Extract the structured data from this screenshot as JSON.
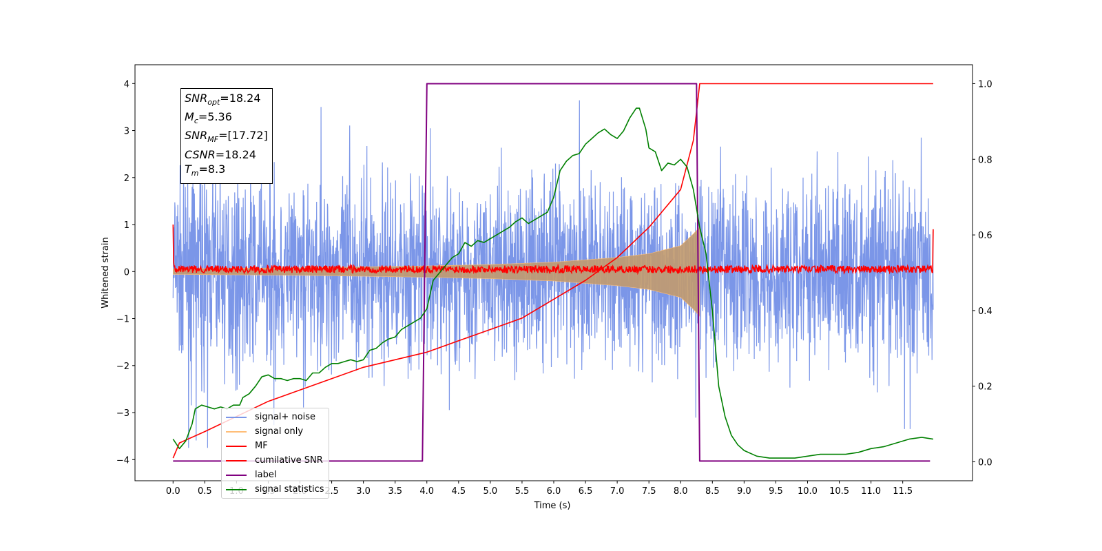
{
  "chart_data": {
    "type": "line",
    "xlabel": "Time (s)",
    "ylabel": "Whitened strain",
    "xlim": [
      -0.6,
      12.6
    ],
    "ylim_left": [
      -4.45,
      4.4
    ],
    "ylim_right": [
      -0.05,
      1.05
    ],
    "x_ticks": [
      "0.0",
      "0.5",
      "1.0",
      "1.5",
      "2.0",
      "2.5",
      "3.0",
      "3.5",
      "4.0",
      "4.5",
      "5.0",
      "5.5",
      "6.0",
      "6.5",
      "7.0",
      "7.5",
      "8.0",
      "8.5",
      "9.0",
      "9.5",
      "10.0",
      "10.5",
      "11.0",
      "11.5"
    ],
    "y_ticks_left": [
      "−4",
      "−3",
      "−2",
      "−1",
      "0",
      "1",
      "2",
      "3",
      "4"
    ],
    "y_ticks_right": [
      "0.0",
      "0.2",
      "0.4",
      "0.6",
      "0.8",
      "1.0"
    ],
    "annotation": {
      "snr_opt_sub": "opt",
      "snr_opt_value": "=18.24",
      "mc_sub": "c",
      "mc_value": "=5.36",
      "snr_mf_sub": "MF",
      "snr_mf_value": "=[17.72]",
      "csnr_value": "=18.24",
      "tm_sub": "m",
      "tm_value": "=8.3"
    },
    "legend": {
      "placement": "lower-left",
      "entries": [
        {
          "label": "signal+ noise",
          "color": "#7b96e8"
        },
        {
          "label": "signal only",
          "color": "#ffbe78"
        },
        {
          "label": "MF",
          "color": "#ff0000"
        },
        {
          "label": "cumilative SNR",
          "color": "#ff0000"
        },
        {
          "label": "label",
          "color": "#800080"
        },
        {
          "label": "signal statistics",
          "color": "#008000"
        }
      ]
    },
    "series": [
      {
        "name": "signal+ noise",
        "axis": "left",
        "color": "#7b96e8",
        "noise_amplitude": 1.3,
        "x_range": [
          0.0,
          11.98
        ]
      },
      {
        "name": "signal only",
        "axis": "left",
        "color": "#ffbe78",
        "envelope": [
          [
            0.0,
            0.06
          ],
          [
            2.0,
            0.08
          ],
          [
            4.0,
            0.12
          ],
          [
            5.0,
            0.15
          ],
          [
            6.0,
            0.2
          ],
          [
            7.0,
            0.3
          ],
          [
            7.5,
            0.38
          ],
          [
            8.0,
            0.55
          ],
          [
            8.2,
            0.8
          ],
          [
            8.3,
            0.95
          ]
        ]
      },
      {
        "name": "MF",
        "axis": "left",
        "color": "#ff0000",
        "baseline": 0.05,
        "x_range": [
          0.0,
          11.98
        ]
      },
      {
        "name": "cumilative SNR",
        "axis": "right",
        "color": "#ff0000",
        "points": [
          [
            0.0,
            0.01
          ],
          [
            0.1,
            0.05
          ],
          [
            0.5,
            0.08
          ],
          [
            1.0,
            0.12
          ],
          [
            1.5,
            0.16
          ],
          [
            2.0,
            0.19
          ],
          [
            2.5,
            0.22
          ],
          [
            3.0,
            0.25
          ],
          [
            3.5,
            0.27
          ],
          [
            4.0,
            0.29
          ],
          [
            4.5,
            0.32
          ],
          [
            5.0,
            0.35
          ],
          [
            5.5,
            0.38
          ],
          [
            6.0,
            0.43
          ],
          [
            6.5,
            0.48
          ],
          [
            7.0,
            0.54
          ],
          [
            7.5,
            0.62
          ],
          [
            8.0,
            0.72
          ],
          [
            8.2,
            0.85
          ],
          [
            8.3,
            1.0
          ],
          [
            11.98,
            1.0
          ]
        ]
      },
      {
        "name": "label",
        "axis": "right",
        "color": "#800080",
        "points": [
          [
            0.0,
            0.002
          ],
          [
            3.93,
            0.002
          ],
          [
            4.0,
            1.0
          ],
          [
            8.25,
            1.0
          ],
          [
            8.3,
            0.002
          ],
          [
            11.93,
            0.002
          ]
        ]
      },
      {
        "name": "signal statistics",
        "axis": "right",
        "color": "#008000",
        "points": [
          [
            0.0,
            0.06
          ],
          [
            0.1,
            0.035
          ],
          [
            0.2,
            0.055
          ],
          [
            0.3,
            0.1
          ],
          [
            0.35,
            0.14
          ],
          [
            0.45,
            0.15
          ],
          [
            0.55,
            0.145
          ],
          [
            0.65,
            0.14
          ],
          [
            0.75,
            0.145
          ],
          [
            0.85,
            0.14
          ],
          [
            0.95,
            0.15
          ],
          [
            1.05,
            0.15
          ],
          [
            1.1,
            0.17
          ],
          [
            1.2,
            0.18
          ],
          [
            1.3,
            0.2
          ],
          [
            1.4,
            0.225
          ],
          [
            1.5,
            0.23
          ],
          [
            1.6,
            0.22
          ],
          [
            1.7,
            0.22
          ],
          [
            1.8,
            0.215
          ],
          [
            1.9,
            0.22
          ],
          [
            2.0,
            0.22
          ],
          [
            2.1,
            0.215
          ],
          [
            2.2,
            0.235
          ],
          [
            2.3,
            0.235
          ],
          [
            2.4,
            0.25
          ],
          [
            2.5,
            0.26
          ],
          [
            2.6,
            0.26
          ],
          [
            2.7,
            0.265
          ],
          [
            2.8,
            0.27
          ],
          [
            2.9,
            0.265
          ],
          [
            3.0,
            0.27
          ],
          [
            3.1,
            0.295
          ],
          [
            3.2,
            0.3
          ],
          [
            3.3,
            0.315
          ],
          [
            3.4,
            0.325
          ],
          [
            3.5,
            0.33
          ],
          [
            3.6,
            0.35
          ],
          [
            3.7,
            0.36
          ],
          [
            3.8,
            0.37
          ],
          [
            3.9,
            0.38
          ],
          [
            4.0,
            0.405
          ],
          [
            4.1,
            0.48
          ],
          [
            4.2,
            0.5
          ],
          [
            4.3,
            0.52
          ],
          [
            4.4,
            0.54
          ],
          [
            4.5,
            0.55
          ],
          [
            4.6,
            0.58
          ],
          [
            4.7,
            0.57
          ],
          [
            4.8,
            0.585
          ],
          [
            4.9,
            0.58
          ],
          [
            5.0,
            0.59
          ],
          [
            5.1,
            0.6
          ],
          [
            5.2,
            0.61
          ],
          [
            5.3,
            0.62
          ],
          [
            5.4,
            0.635
          ],
          [
            5.5,
            0.645
          ],
          [
            5.6,
            0.63
          ],
          [
            5.7,
            0.64
          ],
          [
            5.8,
            0.65
          ],
          [
            5.9,
            0.66
          ],
          [
            6.0,
            0.7
          ],
          [
            6.1,
            0.77
          ],
          [
            6.2,
            0.795
          ],
          [
            6.3,
            0.81
          ],
          [
            6.4,
            0.815
          ],
          [
            6.5,
            0.84
          ],
          [
            6.6,
            0.855
          ],
          [
            6.7,
            0.87
          ],
          [
            6.8,
            0.88
          ],
          [
            6.9,
            0.865
          ],
          [
            7.0,
            0.855
          ],
          [
            7.1,
            0.875
          ],
          [
            7.2,
            0.91
          ],
          [
            7.3,
            0.935
          ],
          [
            7.35,
            0.935
          ],
          [
            7.45,
            0.88
          ],
          [
            7.5,
            0.83
          ],
          [
            7.6,
            0.82
          ],
          [
            7.7,
            0.77
          ],
          [
            7.8,
            0.79
          ],
          [
            7.9,
            0.785
          ],
          [
            8.0,
            0.8
          ],
          [
            8.1,
            0.78
          ],
          [
            8.2,
            0.72
          ],
          [
            8.3,
            0.62
          ],
          [
            8.4,
            0.55
          ],
          [
            8.5,
            0.4
          ],
          [
            8.6,
            0.2
          ],
          [
            8.7,
            0.12
          ],
          [
            8.8,
            0.07
          ],
          [
            8.9,
            0.045
          ],
          [
            9.0,
            0.03
          ],
          [
            9.2,
            0.015
          ],
          [
            9.4,
            0.01
          ],
          [
            9.6,
            0.01
          ],
          [
            9.8,
            0.01
          ],
          [
            10.0,
            0.015
          ],
          [
            10.2,
            0.02
          ],
          [
            10.4,
            0.02
          ],
          [
            10.6,
            0.02
          ],
          [
            10.8,
            0.025
          ],
          [
            11.0,
            0.035
          ],
          [
            11.2,
            0.04
          ],
          [
            11.4,
            0.05
          ],
          [
            11.6,
            0.06
          ],
          [
            11.8,
            0.065
          ],
          [
            11.98,
            0.06
          ]
        ]
      }
    ]
  }
}
